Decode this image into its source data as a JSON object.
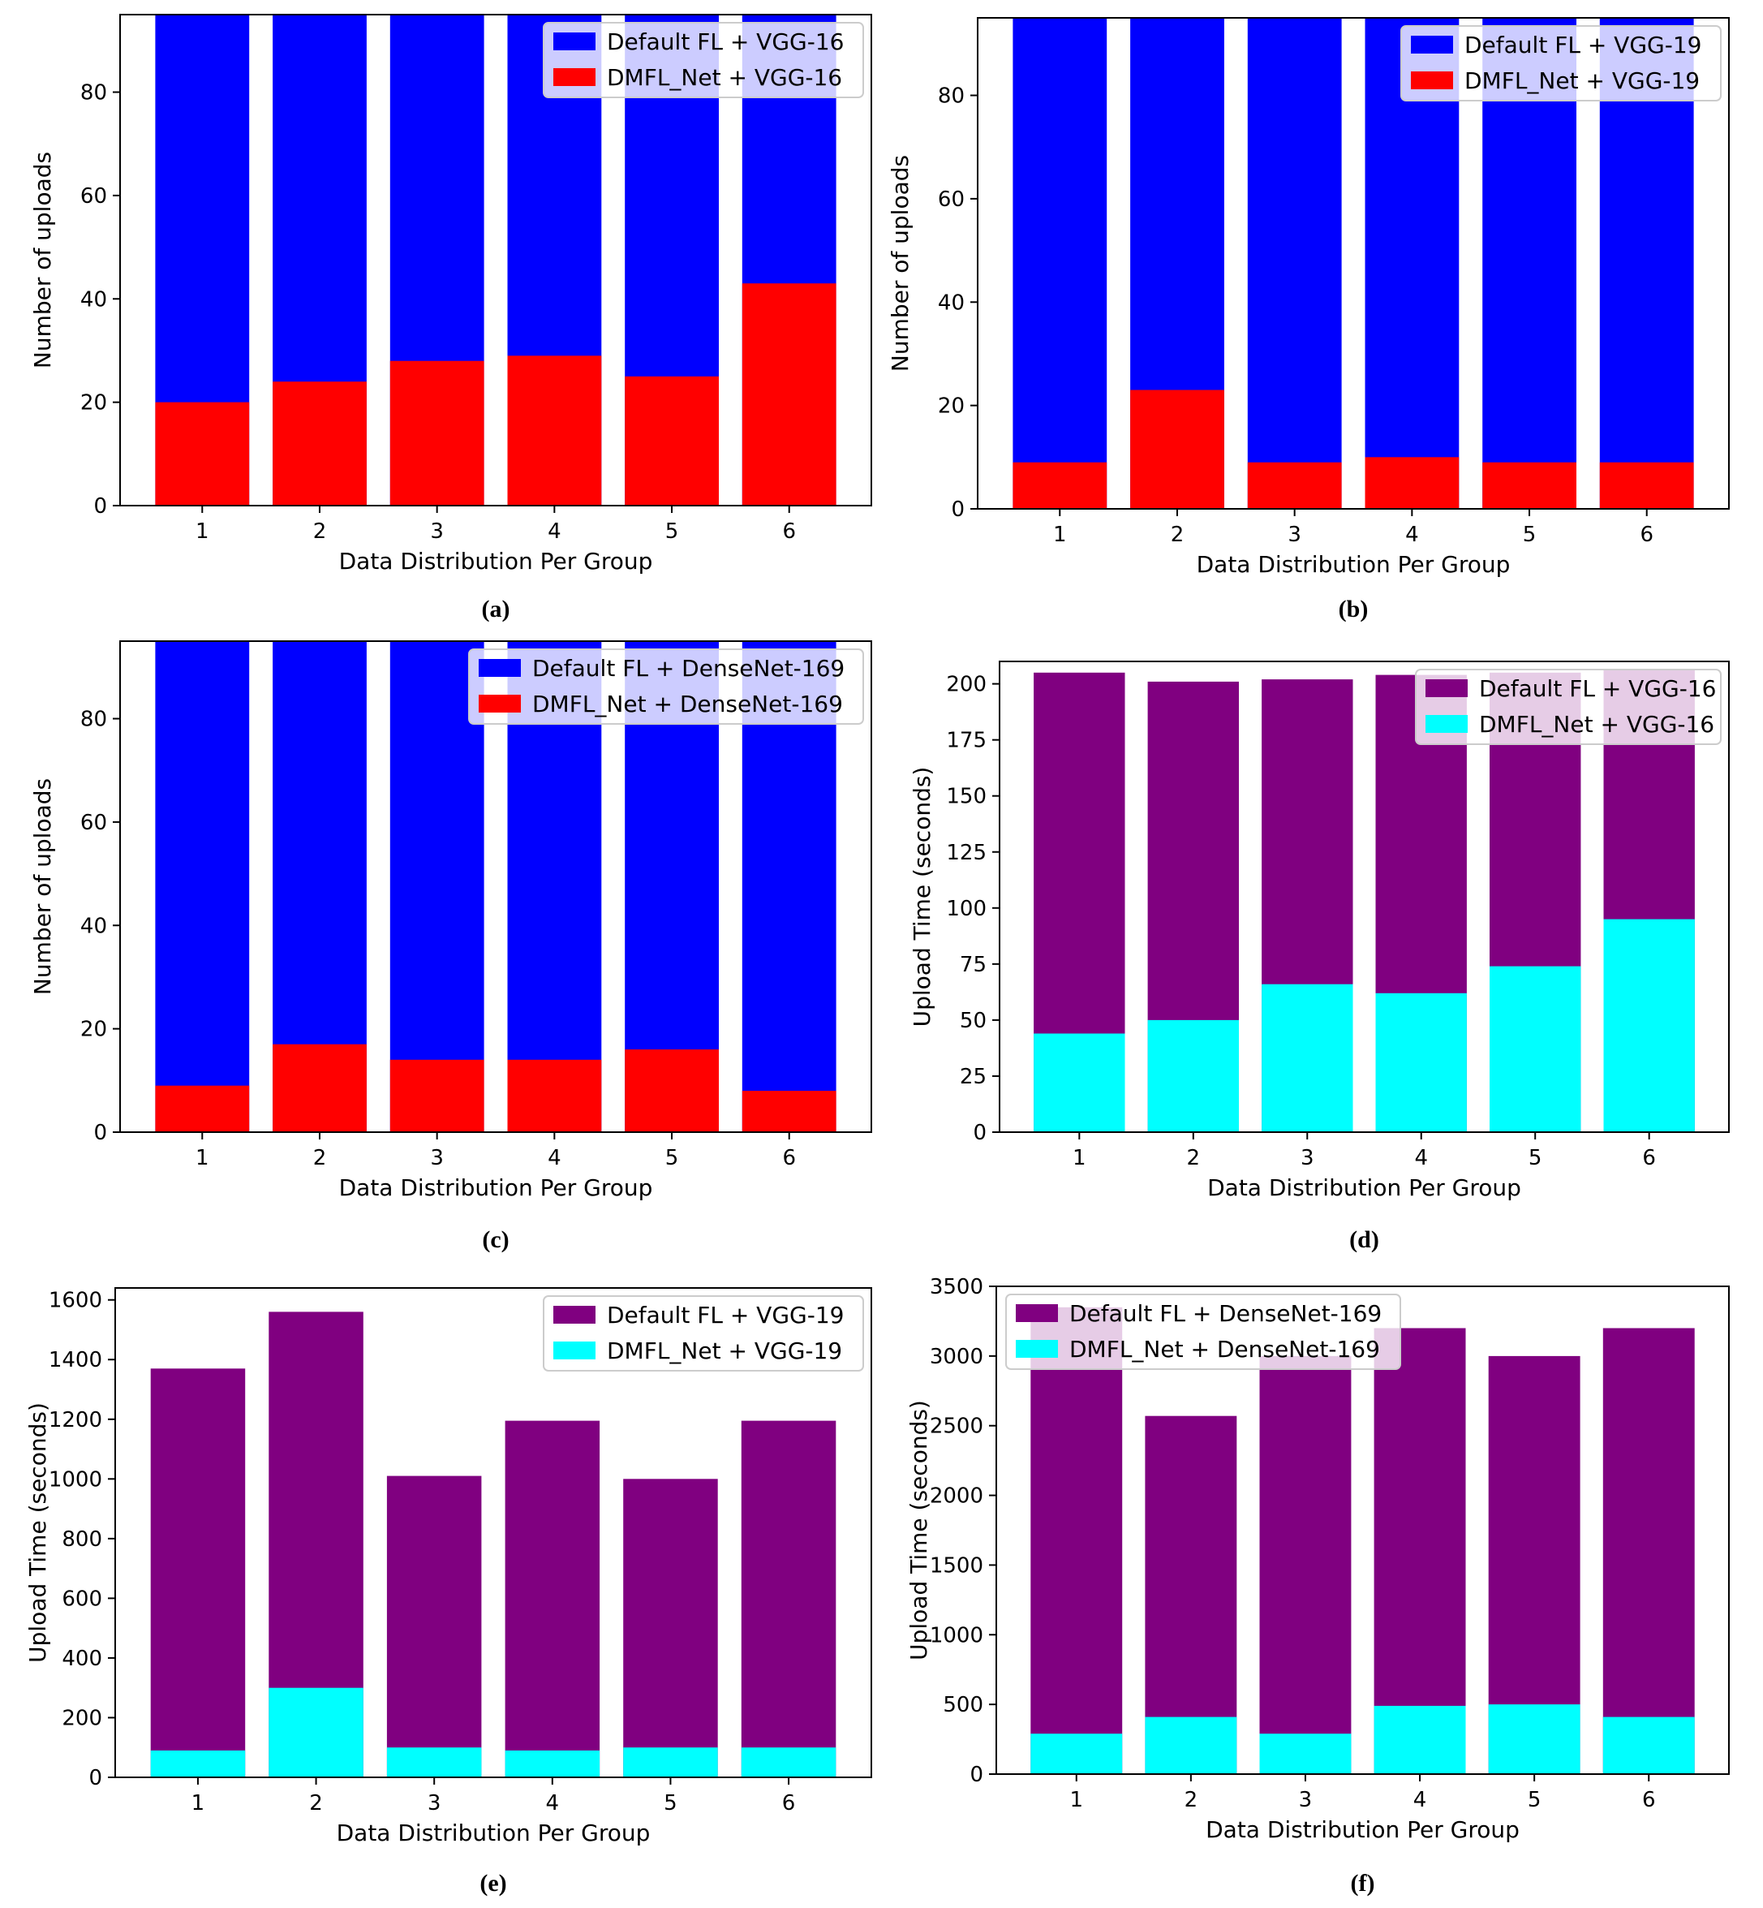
{
  "chart_data": [
    {
      "id": "a",
      "type": "bar",
      "stacking": "overlay",
      "caption": "(a)",
      "categories": [
        "1",
        "2",
        "3",
        "4",
        "5",
        "6"
      ],
      "series": [
        {
          "name": "Default FL + VGG-16",
          "color": "#0000ff",
          "values": [
            95,
            95,
            95,
            95,
            95,
            95
          ]
        },
        {
          "name": "DMFL_Net + VGG-16",
          "color": "#ff0000",
          "values": [
            20,
            24,
            28,
            29,
            25,
            43
          ]
        }
      ],
      "xlabel": "Data Distribution Per Group",
      "ylabel": "Number of uploads",
      "ylim": [
        0,
        95
      ],
      "yticks": [
        0,
        20,
        40,
        60,
        80
      ],
      "ytick_labels": [
        "0",
        "20",
        "40",
        "60",
        "80"
      ],
      "legend": "top-right"
    },
    {
      "id": "b",
      "type": "bar",
      "stacking": "overlay",
      "caption": "(b)",
      "categories": [
        "1",
        "2",
        "3",
        "4",
        "5",
        "6"
      ],
      "series": [
        {
          "name": "Default FL + VGG-19",
          "color": "#0000ff",
          "values": [
            95,
            95,
            95,
            95,
            95,
            95
          ]
        },
        {
          "name": "DMFL_Net + VGG-19",
          "color": "#ff0000",
          "values": [
            9,
            23,
            9,
            10,
            9,
            9
          ]
        }
      ],
      "xlabel": "Data Distribution Per Group",
      "ylabel": "Number of uploads",
      "ylim": [
        0,
        95
      ],
      "yticks": [
        0,
        20,
        40,
        60,
        80
      ],
      "ytick_labels": [
        "0",
        "20",
        "40",
        "60",
        "80"
      ],
      "legend": "top-right"
    },
    {
      "id": "c",
      "type": "bar",
      "stacking": "overlay",
      "caption": "(c)",
      "categories": [
        "1",
        "2",
        "3",
        "4",
        "5",
        "6"
      ],
      "series": [
        {
          "name": "Default FL + DenseNet-169",
          "color": "#0000ff",
          "values": [
            95,
            95,
            95,
            95,
            95,
            95
          ]
        },
        {
          "name": "DMFL_Net + DenseNet-169",
          "color": "#ff0000",
          "values": [
            9,
            17,
            14,
            14,
            16,
            8
          ]
        }
      ],
      "xlabel": "Data Distribution Per Group",
      "ylabel": "Number of uploads",
      "ylim": [
        0,
        95
      ],
      "yticks": [
        0,
        20,
        40,
        60,
        80
      ],
      "ytick_labels": [
        "0",
        "20",
        "40",
        "60",
        "80"
      ],
      "legend": "top-right"
    },
    {
      "id": "d",
      "type": "bar",
      "stacking": "overlay",
      "caption": "(d)",
      "categories": [
        "1",
        "2",
        "3",
        "4",
        "5",
        "6"
      ],
      "series": [
        {
          "name": "Default FL + VGG-16",
          "color": "#800080",
          "values": [
            205,
            201,
            202,
            204,
            205,
            206
          ]
        },
        {
          "name": "DMFL_Net + VGG-16",
          "color": "#00ffff",
          "values": [
            44,
            50,
            66,
            62,
            74,
            95
          ]
        }
      ],
      "xlabel": "Data Distribution Per Group",
      "ylabel": "Upload Time (seconds)",
      "ylim": [
        0,
        210
      ],
      "yticks": [
        0,
        25,
        50,
        75,
        100,
        125,
        150,
        175,
        200
      ],
      "ytick_labels": [
        "0",
        "25",
        "50",
        "75",
        "100",
        "125",
        "150",
        "175",
        "200"
      ],
      "legend": "top-right"
    },
    {
      "id": "e",
      "type": "bar",
      "stacking": "overlay",
      "caption": "(e)",
      "categories": [
        "1",
        "2",
        "3",
        "4",
        "5",
        "6"
      ],
      "series": [
        {
          "name": "Default FL + VGG-19",
          "color": "#800080",
          "values": [
            1370,
            1560,
            1010,
            1195,
            1000,
            1195
          ]
        },
        {
          "name": "DMFL_Net + VGG-19",
          "color": "#00ffff",
          "values": [
            90,
            300,
            100,
            90,
            100,
            100
          ]
        }
      ],
      "xlabel": "Data Distribution Per Group",
      "ylabel": "Upload Time (seconds)",
      "ylim": [
        0,
        1640
      ],
      "yticks": [
        0,
        200,
        400,
        600,
        800,
        1000,
        1200,
        1400,
        1600
      ],
      "ytick_labels": [
        "0",
        "200",
        "400",
        "600",
        "800",
        "1000",
        "1200",
        "1400",
        "1600"
      ],
      "legend": "top-right"
    },
    {
      "id": "f",
      "type": "bar",
      "stacking": "overlay",
      "caption": "(f)",
      "categories": [
        "1",
        "2",
        "3",
        "4",
        "5",
        "6"
      ],
      "series": [
        {
          "name": "Default FL + DenseNet-169",
          "color": "#800080",
          "values": [
            3350,
            2570,
            3000,
            3200,
            3000,
            3200
          ]
        },
        {
          "name": "DMFL_Net + DenseNet-169",
          "color": "#00ffff",
          "values": [
            290,
            410,
            290,
            490,
            500,
            410
          ]
        }
      ],
      "xlabel": "Data Distribution Per Group",
      "ylabel": "Upload Time (seconds)",
      "ylim": [
        0,
        3500
      ],
      "yticks": [
        0,
        500,
        1000,
        1500,
        2000,
        2500,
        3000,
        3500
      ],
      "ytick_labels": [
        "0",
        "500",
        "1000",
        "1500",
        "2000",
        "2500",
        "3000",
        "3500"
      ],
      "legend": "top-left"
    }
  ]
}
